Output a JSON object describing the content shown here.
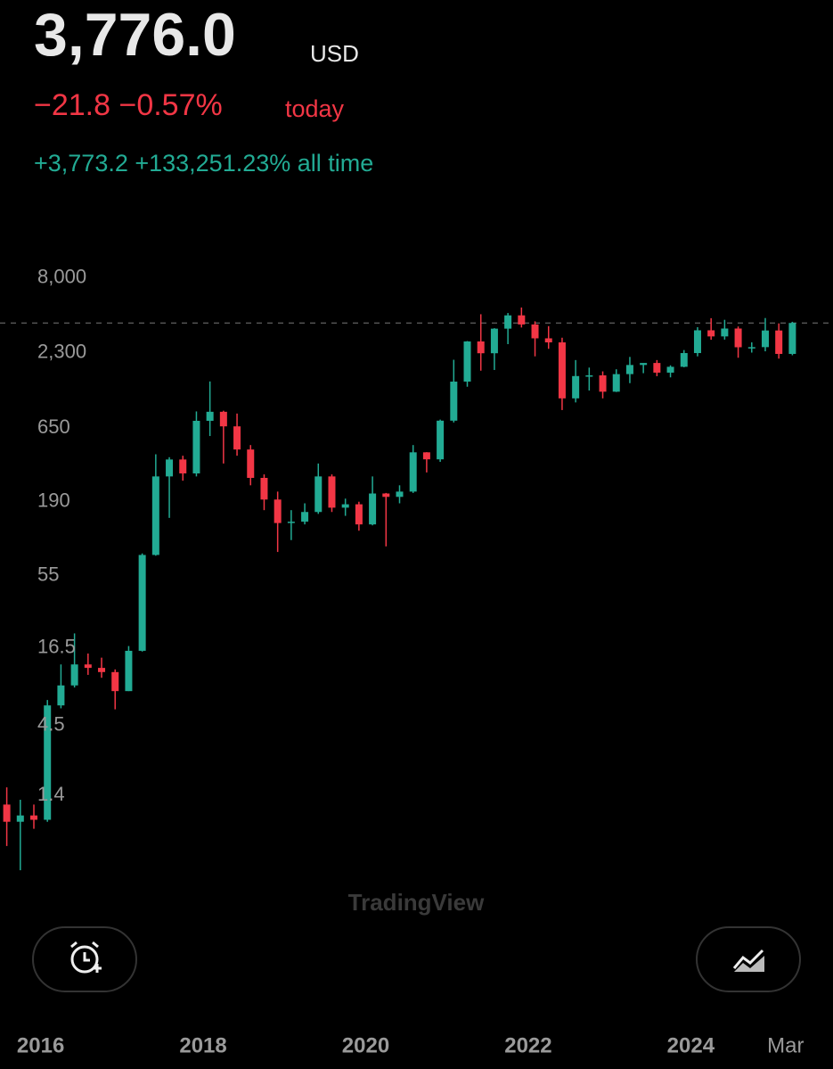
{
  "header": {
    "price": "3,776.0",
    "currency": "USD",
    "change_today": "−21.8 −0.57%",
    "today_label": "today",
    "change_all_time": "+3,773.2 +133,251.23% all time"
  },
  "watermark": "TradingView",
  "chart_data": {
    "type": "candlestick",
    "log_scale": true,
    "up_color": "#22ab94",
    "down_color": "#f23645",
    "last_price": 3776,
    "x": [
      "2015-08",
      "2015-10",
      "2015-12",
      "2016-02",
      "2016-04",
      "2016-06",
      "2016-08",
      "2016-10",
      "2016-12",
      "2017-02",
      "2017-04",
      "2017-06",
      "2017-08",
      "2017-10",
      "2017-12",
      "2018-02",
      "2018-04",
      "2018-06",
      "2018-08",
      "2018-10",
      "2018-12",
      "2019-02",
      "2019-04",
      "2019-06",
      "2019-08",
      "2019-10",
      "2019-12",
      "2020-02",
      "2020-04",
      "2020-06",
      "2020-08",
      "2020-10",
      "2020-12",
      "2021-02",
      "2021-04",
      "2021-06",
      "2021-08",
      "2021-10",
      "2021-12",
      "2022-02",
      "2022-04",
      "2022-06",
      "2022-08",
      "2022-10",
      "2022-12",
      "2023-02",
      "2023-04",
      "2023-06",
      "2023-08",
      "2023-10",
      "2023-12",
      "2024-02",
      "2024-04",
      "2024-06",
      "2024-08",
      "2024-10",
      "2024-12",
      "2025-02",
      "2025-04"
    ],
    "open": [
      1.2,
      0.9,
      1.0,
      0.93,
      6.3,
      8.8,
      12.5,
      11.8,
      11,
      8,
      15.7,
      78,
      290,
      385,
      305,
      735,
      855,
      670,
      455,
      283,
      197,
      133,
      136,
      160,
      290,
      172,
      182,
      130,
      218,
      206,
      225,
      434,
      386,
      737,
      1416,
      2773,
      2275,
      3433,
      4288,
      3682,
      2920,
      2729,
      1070,
      1554,
      1572,
      1196,
      1605,
      1870,
      1934,
      1645,
      1814,
      2282,
      3340,
      3015,
      3440,
      2515,
      2520,
      3330,
      2250
    ],
    "high": [
      1.6,
      1.3,
      1.2,
      6.9,
      12.5,
      21,
      15,
      14,
      11.5,
      17,
      80,
      420,
      400,
      410,
      860,
      1420,
      870,
      830,
      490,
      300,
      225,
      165,
      185,
      360,
      300,
      200,
      190,
      290,
      220,
      250,
      490,
      435,
      750,
      2040,
      2790,
      4370,
      3460,
      4460,
      4890,
      3880,
      3580,
      2950,
      2030,
      1790,
      1680,
      1740,
      2140,
      1930,
      2030,
      1860,
      2400,
      3520,
      4090,
      3980,
      3560,
      2730,
      4100,
      3750,
      3850
    ],
    "low": [
      0.6,
      0.4,
      0.8,
      0.9,
      6.0,
      8.5,
      10.5,
      10,
      5.9,
      8,
      15.5,
      77,
      145,
      270,
      290,
      570,
      360,
      410,
      250,
      165,
      82,
      100,
      130,
      155,
      160,
      150,
      117,
      128,
      90,
      185,
      220,
      310,
      370,
      715,
      1300,
      1700,
      1720,
      2650,
      3500,
      2160,
      2450,
      880,
      1000,
      1220,
      1070,
      1190,
      1380,
      1630,
      1550,
      1520,
      1800,
      2160,
      2850,
      2860,
      2110,
      2300,
      2350,
      2080,
      2200
    ],
    "close": [
      0.9,
      1.0,
      0.93,
      6.3,
      8.8,
      12.5,
      11.8,
      11,
      8,
      15.7,
      78,
      290,
      385,
      305,
      735,
      855,
      670,
      455,
      283,
      197,
      133,
      136,
      160,
      290,
      172,
      182,
      130,
      218,
      206,
      225,
      434,
      386,
      737,
      1416,
      2773,
      2275,
      3433,
      4288,
      3682,
      2920,
      2729,
      1070,
      1554,
      1572,
      1196,
      1605,
      1870,
      1934,
      1645,
      1814,
      2282,
      3340,
      3015,
      3440,
      2515,
      2520,
      3330,
      2250,
      3776
    ],
    "xlim": [
      "2015-07",
      "2025-10"
    ],
    "xticks": [
      {
        "value": "2016-01",
        "label": "2016"
      },
      {
        "value": "2018-01",
        "label": "2018"
      },
      {
        "value": "2020-01",
        "label": "2020"
      },
      {
        "value": "2022-01",
        "label": "2022"
      },
      {
        "value": "2024-01",
        "label": "2024"
      },
      {
        "value": "2025-03",
        "label": "Mar"
      }
    ],
    "ylim": [
      0.28,
      17340
    ],
    "yticks": [
      1.4,
      4.5,
      16.5,
      55,
      190,
      650,
      {
        "value": 2300,
        "label": "2,300"
      },
      {
        "value": 8000,
        "label": "8,000"
      }
    ]
  }
}
